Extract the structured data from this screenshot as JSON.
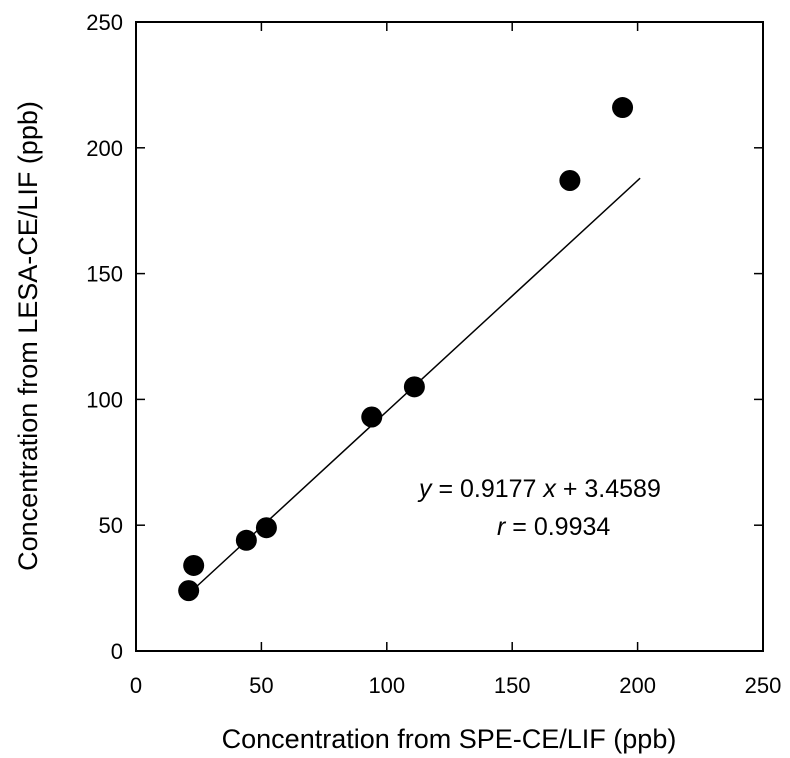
{
  "chart_data": {
    "type": "scatter",
    "title": "",
    "xlabel": "Concentration from SPE-CE/LIF (ppb)",
    "ylabel": "Concentration from LESA-CE/LIF (ppb)",
    "xlim": [
      0,
      250
    ],
    "ylim": [
      0,
      250
    ],
    "xticks": [
      "0",
      "50",
      "100",
      "150",
      "200",
      "250"
    ],
    "yticks": [
      "0",
      "50",
      "100",
      "150",
      "200",
      "250"
    ],
    "grid": false,
    "points": [
      {
        "x": 21,
        "y": 24
      },
      {
        "x": 23,
        "y": 34
      },
      {
        "x": 44,
        "y": 44
      },
      {
        "x": 52,
        "y": 49
      },
      {
        "x": 94,
        "y": 93
      },
      {
        "x": 111,
        "y": 105
      },
      {
        "x": 173,
        "y": 187
      },
      {
        "x": 194,
        "y": 216
      }
    ],
    "fit_line": {
      "slope": 0.9177,
      "intercept": 3.4589,
      "x_range": [
        22,
        201
      ]
    },
    "annotation": {
      "eq_y": "y",
      "eq_mid": " = 0.9177 ",
      "eq_x": "x",
      "eq_end": " + 3.4589",
      "r_var": "r",
      "r_rest": " = 0.9934"
    },
    "marker_color": "#000000",
    "line_color": "#000000"
  }
}
